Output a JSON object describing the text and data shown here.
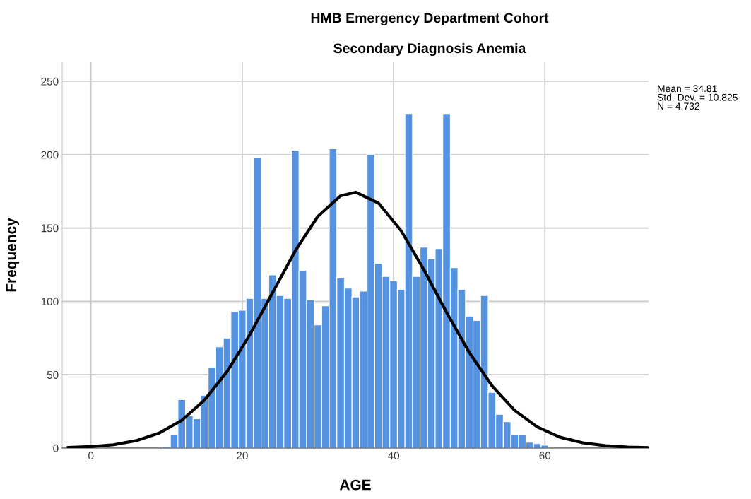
{
  "chart_data": {
    "type": "histogram",
    "title": "HMB Emergency Department Cohort",
    "subtitle": "Secondary Diagnosis Anemia",
    "xlabel": "AGE",
    "ylabel": "Frequency",
    "annotations": [
      "Mean = 34.81\nStd. Dev. = 10.825\nN = 4,732"
    ],
    "xlim": [
      -3.8,
      73.7
    ],
    "ylim": [
      0,
      263
    ],
    "xticks": [
      0,
      20,
      40,
      60
    ],
    "yticks": [
      0,
      50,
      100,
      150,
      200,
      250
    ],
    "grid": true,
    "legend": false,
    "series": [
      {
        "color": "#5593e0",
        "bins": [
          9.5,
          10.5,
          11.5,
          12.5,
          13.5,
          14.5,
          15.5,
          16.5,
          17.5,
          18.5,
          19.5,
          20.5,
          21.5,
          22.5,
          23.5,
          24.5,
          25.5,
          26.5,
          27.5,
          28.5,
          29.5,
          30.5,
          31.5,
          32.5,
          33.5,
          34.5,
          35.5,
          36.5,
          37.5,
          38.5,
          39.5,
          40.5,
          41.5,
          42.5,
          43.5,
          44.5,
          45.5,
          46.5,
          47.5,
          48.5,
          49.5,
          50.5,
          51.5,
          52.5,
          53.5,
          54.5,
          55.5,
          56.5,
          57.5,
          58.5,
          59.5,
          60.5
        ],
        "values": [
          1,
          9,
          33,
          22,
          20,
          36,
          55,
          69,
          75,
          93,
          94,
          102,
          198,
          102,
          118,
          104,
          102,
          203,
          121,
          101,
          84,
          97,
          204,
          116,
          109,
          103,
          107,
          200,
          126,
          117,
          114,
          108,
          228,
          117,
          137,
          129,
          136,
          228,
          123,
          108,
          90,
          87,
          104,
          38,
          23,
          18,
          9,
          9,
          4,
          3,
          2
        ]
      },
      {
        "type": "line",
        "color": "#000000",
        "x": [
          -3,
          0,
          3,
          6,
          9,
          12,
          15,
          18,
          21,
          24,
          27,
          30,
          33,
          35,
          38,
          41,
          44,
          47,
          50,
          53,
          56,
          59,
          62,
          65,
          68,
          71,
          73.7
        ],
        "values": [
          0.4,
          1.0,
          2.3,
          5.1,
          10.2,
          18.9,
          32.7,
          52.2,
          77.3,
          105.9,
          134.4,
          158.0,
          172.0,
          174.4,
          167.0,
          148.1,
          121.6,
          92.5,
          65.2,
          42.5,
          25.7,
          14.4,
          7.4,
          3.6,
          1.6,
          0.7,
          0.3
        ]
      }
    ]
  }
}
